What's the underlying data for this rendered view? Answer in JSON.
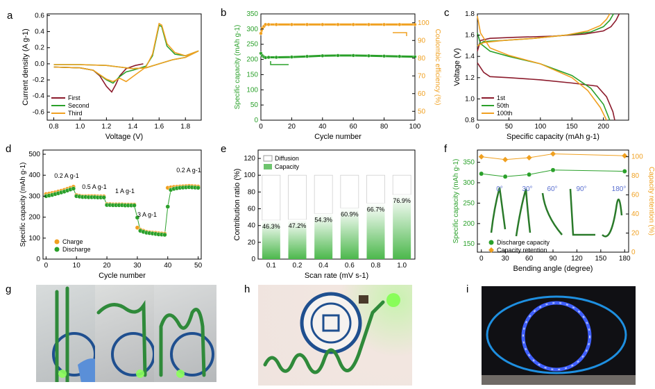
{
  "panel_labels": [
    "a",
    "b",
    "c",
    "d",
    "e",
    "f",
    "g",
    "h",
    "i"
  ],
  "colors": {
    "first": "#8b1a2b",
    "second": "#2aa02a",
    "third": "#f0a020",
    "green": "#2aa02a",
    "orange": "#f0a020",
    "blue_arrow": "#5a6fd0"
  },
  "chart_data": [
    {
      "id": "a",
      "type": "line",
      "xlabel": "Voltage (V)",
      "ylabel": "Current density (A g-1)",
      "xlim": [
        0.75,
        1.92
      ],
      "ylim": [
        -0.7,
        0.62
      ],
      "xticks": [
        "0.8",
        "1.0",
        "1.2",
        "1.4",
        "1.6",
        "1.8"
      ],
      "yticks": [
        "-0.6",
        "-0.4",
        "-0.2",
        "0.0",
        "0.2",
        "0.4",
        "0.6"
      ],
      "legend": [
        "First",
        "Second",
        "Third"
      ],
      "series": [
        {
          "name": "First",
          "color": "#8b1a2b",
          "x": [
            0.8,
            1.0,
            1.1,
            1.15,
            1.2,
            1.24,
            1.27,
            1.3,
            1.35,
            1.42,
            1.48
          ],
          "y": [
            -0.04,
            -0.05,
            -0.08,
            -0.15,
            -0.28,
            -0.35,
            -0.26,
            -0.15,
            -0.06,
            -0.02,
            0.0
          ]
        },
        {
          "name": "Second",
          "color": "#2aa02a",
          "x": [
            0.8,
            1.0,
            1.1,
            1.2,
            1.25,
            1.3,
            1.35,
            1.4,
            1.5,
            1.55,
            1.6,
            1.62,
            1.66,
            1.72,
            1.8,
            1.9,
            1.8,
            1.7,
            1.6,
            1.5,
            1.4,
            1.3,
            1.2,
            1.0,
            0.8
          ],
          "y": [
            -0.04,
            -0.05,
            -0.08,
            -0.2,
            -0.24,
            -0.16,
            -0.1,
            -0.08,
            -0.03,
            0.1,
            0.48,
            0.46,
            0.22,
            0.12,
            0.1,
            0.16,
            0.08,
            0.05,
            0.0,
            -0.05,
            -0.06,
            -0.04,
            -0.02,
            -0.01,
            -0.01
          ]
        },
        {
          "name": "Third",
          "color": "#f0a020",
          "x": [
            0.8,
            1.0,
            1.1,
            1.2,
            1.25,
            1.3,
            1.35,
            1.4,
            1.5,
            1.55,
            1.6,
            1.62,
            1.66,
            1.72,
            1.8,
            1.9,
            1.8,
            1.7,
            1.6,
            1.5,
            1.4,
            1.3,
            1.2,
            1.0,
            0.8
          ],
          "y": [
            -0.04,
            -0.05,
            -0.08,
            -0.19,
            -0.22,
            -0.18,
            -0.22,
            -0.16,
            -0.04,
            0.12,
            0.5,
            0.48,
            0.25,
            0.14,
            0.1,
            0.16,
            0.08,
            0.05,
            0.0,
            -0.05,
            -0.06,
            -0.04,
            -0.02,
            -0.01,
            -0.01
          ]
        }
      ]
    },
    {
      "id": "b",
      "type": "scatter",
      "xlabel": "Cycle number",
      "ylabel": "Specific capacity (mAh g-1)",
      "y2label": "Coulombic efficiency (%)",
      "xlim": [
        0,
        100
      ],
      "ylim": [
        0,
        350
      ],
      "y2lim": [
        45,
        105
      ],
      "xticks": [
        "0",
        "20",
        "40",
        "60",
        "80",
        "100"
      ],
      "yticks": [
        "0",
        "50",
        "100",
        "150",
        "200",
        "250",
        "300",
        "350"
      ],
      "y2ticks": [
        "50",
        "60",
        "70",
        "80",
        "90",
        "100"
      ],
      "series": [
        {
          "name": "Specific capacity",
          "color": "#2aa02a",
          "axis": "left",
          "x": [
            0,
            1,
            2,
            3,
            5,
            10,
            20,
            30,
            40,
            50,
            60,
            70,
            80,
            90,
            100
          ],
          "y": [
            220,
            212,
            208,
            206,
            207,
            207,
            208,
            210,
            212,
            213,
            213,
            212,
            211,
            210,
            209
          ]
        },
        {
          "name": "Coulombic efficiency",
          "color": "#f0a020",
          "axis": "right",
          "x": [
            0,
            1,
            2,
            3,
            5,
            10,
            20,
            30,
            40,
            50,
            60,
            70,
            80,
            90,
            100
          ],
          "y": [
            94,
            97,
            98,
            99,
            99,
            99,
            99,
            99,
            99,
            99,
            99,
            99,
            99,
            99,
            99
          ]
        }
      ]
    },
    {
      "id": "c",
      "type": "line",
      "xlabel": "Specific capacity (mAh g-1)",
      "ylabel": "Voltage (V)",
      "xlim": [
        0,
        240
      ],
      "ylim": [
        0.8,
        1.8
      ],
      "xticks": [
        "0",
        "50",
        "100",
        "150",
        "200"
      ],
      "yticks": [
        "0.8",
        "1.0",
        "1.2",
        "1.4",
        "1.6",
        "1.8"
      ],
      "legend": [
        "1st",
        "50th",
        "100th"
      ],
      "series": [
        {
          "name": "1st",
          "color": "#8b1a2b",
          "x": [
            0,
            10,
            20,
            50,
            100,
            150,
            190,
            205,
            215,
            218
          ],
          "y": [
            1.34,
            1.25,
            1.21,
            1.2,
            1.18,
            1.15,
            1.12,
            1.02,
            0.88,
            0.8
          ]
        },
        {
          "name": "1st charge",
          "color": "#8b1a2b",
          "x": [
            0,
            5,
            20,
            60,
            120,
            170,
            200,
            212,
            220,
            225
          ],
          "y": [
            1.45,
            1.55,
            1.57,
            1.58,
            1.59,
            1.61,
            1.64,
            1.68,
            1.74,
            1.8
          ]
        },
        {
          "name": "50th",
          "color": "#2aa02a",
          "x": [
            0,
            5,
            20,
            50,
            100,
            150,
            180,
            200,
            210
          ],
          "y": [
            1.62,
            1.52,
            1.45,
            1.4,
            1.33,
            1.22,
            1.1,
            0.95,
            0.8
          ]
        },
        {
          "name": "50th charge",
          "color": "#2aa02a",
          "x": [
            0,
            10,
            40,
            90,
            140,
            180,
            200,
            210,
            216
          ],
          "y": [
            1.5,
            1.54,
            1.55,
            1.57,
            1.6,
            1.63,
            1.68,
            1.74,
            1.8
          ]
        },
        {
          "name": "100th",
          "color": "#f0a020",
          "x": [
            0,
            5,
            20,
            50,
            100,
            150,
            175,
            195,
            205
          ],
          "y": [
            1.78,
            1.62,
            1.48,
            1.41,
            1.33,
            1.2,
            1.08,
            0.92,
            0.8
          ]
        },
        {
          "name": "100th charge",
          "color": "#f0a020",
          "x": [
            0,
            10,
            40,
            90,
            140,
            175,
            195,
            205,
            210
          ],
          "y": [
            1.5,
            1.53,
            1.55,
            1.57,
            1.6,
            1.64,
            1.69,
            1.75,
            1.8
          ]
        }
      ]
    },
    {
      "id": "d",
      "type": "scatter",
      "xlabel": "Cycle number",
      "ylabel": "Specific capacity (mAh g-1)",
      "xlim": [
        -1,
        51
      ],
      "ylim": [
        0,
        520
      ],
      "xticks": [
        "0",
        "10",
        "20",
        "30",
        "40",
        "50"
      ],
      "yticks": [
        "0",
        "100",
        "200",
        "300",
        "400",
        "500"
      ],
      "legend": [
        "Charge",
        "Discharge"
      ],
      "annotations": [
        "0.2 A g-1",
        "0.5 A g-1",
        "1 A g-1",
        "3 A g-1",
        "0.2 A g-1"
      ],
      "series": [
        {
          "name": "Charge",
          "color": "#f0a020",
          "x": [
            0,
            1,
            2,
            3,
            4,
            5,
            6,
            7,
            8,
            9,
            10,
            11,
            12,
            13,
            14,
            15,
            16,
            17,
            18,
            19,
            20,
            21,
            22,
            23,
            24,
            25,
            26,
            27,
            28,
            29,
            30,
            31,
            32,
            33,
            34,
            35,
            36,
            37,
            38,
            39,
            40,
            41,
            42,
            43,
            44,
            45,
            46,
            47,
            48,
            49,
            50
          ],
          "y": [
            310,
            312,
            315,
            318,
            322,
            326,
            330,
            335,
            340,
            345,
            305,
            302,
            300,
            300,
            300,
            300,
            300,
            299,
            299,
            299,
            262,
            262,
            261,
            261,
            261,
            261,
            260,
            260,
            260,
            260,
            150,
            140,
            135,
            130,
            128,
            126,
            125,
            123,
            122,
            121,
            340,
            342,
            344,
            345,
            346,
            347,
            348,
            349,
            348,
            347,
            346
          ]
        },
        {
          "name": "Discharge",
          "color": "#2aa02a",
          "x": [
            0,
            1,
            2,
            3,
            4,
            5,
            6,
            7,
            8,
            9,
            10,
            11,
            12,
            13,
            14,
            15,
            16,
            17,
            18,
            19,
            20,
            21,
            22,
            23,
            24,
            25,
            26,
            27,
            28,
            29,
            30,
            31,
            32,
            33,
            34,
            35,
            36,
            37,
            38,
            39,
            40,
            41,
            42,
            43,
            44,
            45,
            46,
            47,
            48,
            49,
            50
          ],
          "y": [
            300,
            303,
            306,
            310,
            314,
            318,
            322,
            327,
            332,
            336,
            300,
            298,
            296,
            296,
            295,
            295,
            295,
            294,
            294,
            294,
            258,
            258,
            257,
            257,
            257,
            257,
            256,
            256,
            256,
            256,
            198,
            135,
            130,
            126,
            124,
            122,
            120,
            118,
            117,
            116,
            250,
            330,
            335,
            338,
            340,
            341,
            342,
            343,
            342,
            341,
            340
          ]
        }
      ]
    },
    {
      "id": "e",
      "type": "bar",
      "xlabel": "Scan rate (mV s-1)",
      "ylabel": "Contribution ratio (%)",
      "ylim": [
        0,
        130
      ],
      "yticks": [
        "0",
        "20",
        "40",
        "60",
        "80",
        "100",
        "120"
      ],
      "categories": [
        "0.1",
        "0.2",
        "0.4",
        "0.6",
        "0.8",
        "1.0"
      ],
      "legend": [
        "Diffusion",
        "Capacity"
      ],
      "series": [
        {
          "name": "Capacity",
          "values": [
            46.3,
            47.2,
            54.3,
            60.9,
            66.7,
            76.9
          ]
        },
        {
          "name": "Diffusion",
          "values": [
            53.7,
            52.8,
            45.7,
            39.1,
            33.3,
            23.1
          ]
        }
      ],
      "data_labels": [
        "46.3%",
        "47.2%",
        "54.3%",
        "60.9%",
        "66.7%",
        "76.9%"
      ]
    },
    {
      "id": "f",
      "type": "scatter",
      "xlabel": "Bending angle (degree)",
      "ylabel": "Specific capacity (mAh g-1)",
      "y2label": "Capacity retention (%)",
      "xlim": [
        -5,
        185
      ],
      "ylim": [
        130,
        380
      ],
      "y2lim": [
        0,
        107
      ],
      "xticks": [
        "0",
        "30",
        "60",
        "90",
        "120",
        "150",
        "180"
      ],
      "yticks": [
        "150",
        "200",
        "250",
        "300",
        "350"
      ],
      "y2ticks": [
        "0",
        "20",
        "40",
        "60",
        "80",
        "100"
      ],
      "legend": [
        "Discharge capacity",
        "Capacity retention"
      ],
      "angle_labels": [
        "0°",
        "30°",
        "60°",
        "90°",
        "180°"
      ],
      "series": [
        {
          "name": "Discharge capacity",
          "color": "#2aa02a",
          "axis": "left",
          "x": [
            0,
            30,
            60,
            90,
            180
          ],
          "y": [
            322,
            315,
            320,
            331,
            328
          ]
        },
        {
          "name": "Capacity retention",
          "color": "#f0a020",
          "axis": "right",
          "x": [
            0,
            30,
            60,
            90,
            180
          ],
          "y": [
            100,
            97,
            99,
            103,
            101
          ]
        }
      ]
    }
  ]
}
